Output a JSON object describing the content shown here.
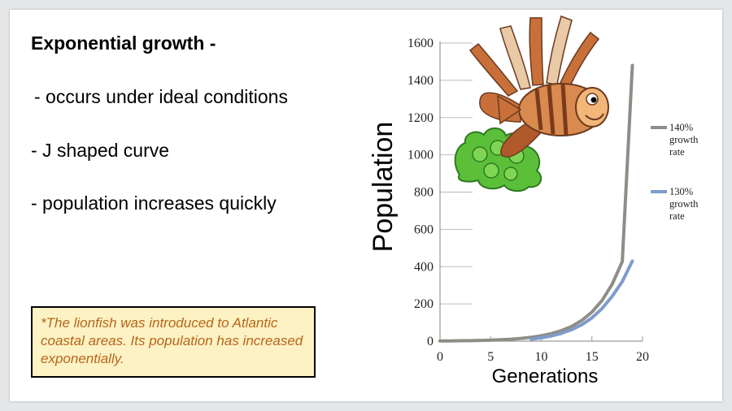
{
  "text": {
    "heading": "Exponential growth -",
    "bullets": [
      " - occurs under ideal conditions",
      "- J shaped curve",
      "- population increases quickly"
    ],
    "note": "*The lionfish was introduced to Atlantic coastal areas. Its population has increased exponentially."
  },
  "colors": {
    "series_140": "#8e8d86",
    "series_130": "#7f9ccb",
    "note_bg": "#fdf2c4",
    "note_text": "#b8651a"
  },
  "illustration": {
    "subject": "lionfish-cartoon",
    "coral": "green-coral"
  },
  "chart_data": {
    "type": "line",
    "xlabel": "Generations",
    "ylabel": "Population",
    "xlim": [
      0,
      20
    ],
    "ylim": [
      0,
      1600
    ],
    "xticks": [
      0,
      5,
      10,
      15,
      20
    ],
    "yticks": [
      0,
      200,
      400,
      600,
      800,
      1000,
      1200,
      1400,
      1600
    ],
    "grid": "horizontal",
    "legend_position": "right",
    "series": [
      {
        "name": "140% growth rate",
        "name_lines": [
          "140%",
          "growth",
          "rate"
        ],
        "color": "#8e8d86",
        "x": [
          0,
          1,
          2,
          3,
          4,
          5,
          6,
          7,
          8,
          9,
          10,
          11,
          12,
          13,
          14,
          15,
          16,
          17,
          18,
          19
        ],
        "y": [
          1,
          1.4,
          2,
          2.7,
          3.8,
          5.4,
          7.5,
          10.5,
          14.8,
          20.7,
          29,
          40.5,
          56.7,
          79.4,
          111,
          156,
          218,
          305,
          427,
          1480
        ]
      },
      {
        "name": "130% growth rate",
        "name_lines": [
          "130%",
          "growth",
          "rate"
        ],
        "color": "#7f9ccb",
        "x": [
          9,
          10,
          11,
          12,
          13,
          14,
          15,
          16,
          17,
          18,
          19
        ],
        "y": [
          10,
          18,
          28,
          42,
          62,
          88,
          125,
          175,
          240,
          320,
          430
        ]
      }
    ]
  }
}
